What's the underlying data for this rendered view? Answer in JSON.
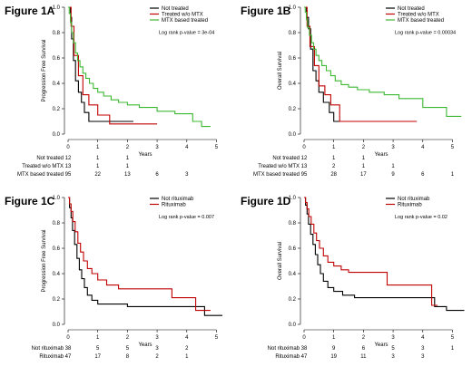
{
  "chart_data": [
    {
      "type": "line",
      "panel_title": "Figure 1A",
      "title": "",
      "xlabel": "Years",
      "ylabel": "Progression Free Survival",
      "xlim": [
        0,
        5.2
      ],
      "ylim": [
        0,
        1
      ],
      "xticks": [
        "0",
        "1",
        "2",
        "3",
        "4",
        "5"
      ],
      "yticks": [
        "0.0",
        "0.2",
        "0.4",
        "0.6",
        "0.8",
        "1.0"
      ],
      "legend_position": "top-right",
      "pvalue": "Log rank p-value = 3e-04",
      "series": [
        {
          "name": "Not treated",
          "color": "#000000",
          "x": [
            0,
            0.08,
            0.12,
            0.18,
            0.25,
            0.35,
            0.45,
            0.55,
            0.7,
            0.9,
            2.2
          ],
          "y": [
            1.0,
            0.92,
            0.75,
            0.58,
            0.42,
            0.33,
            0.25,
            0.17,
            0.1,
            0.1,
            0.1
          ]
        },
        {
          "name": "Treated w/o MTX",
          "color": "#c00000",
          "x": [
            0,
            0.1,
            0.2,
            0.35,
            0.5,
            0.7,
            1.0,
            1.4,
            2.0,
            3.0
          ],
          "y": [
            1.0,
            0.85,
            0.62,
            0.46,
            0.31,
            0.23,
            0.15,
            0.08,
            0.08,
            0.08
          ]
        },
        {
          "name": "MTX based treated",
          "color": "#3cb832",
          "x": [
            0,
            0.04,
            0.08,
            0.12,
            0.18,
            0.25,
            0.32,
            0.4,
            0.5,
            0.6,
            0.72,
            0.85,
            1.0,
            1.2,
            1.45,
            1.7,
            2.0,
            2.4,
            3.0,
            3.6,
            4.2,
            4.5,
            4.8
          ],
          "y": [
            1.0,
            0.95,
            0.88,
            0.8,
            0.72,
            0.64,
            0.58,
            0.53,
            0.48,
            0.44,
            0.4,
            0.36,
            0.33,
            0.3,
            0.27,
            0.25,
            0.23,
            0.21,
            0.18,
            0.16,
            0.1,
            0.06,
            0.06
          ]
        }
      ],
      "risk_table": {
        "rows": [
          {
            "label": "Not treated",
            "values": [
              "12",
              "1",
              "1",
              "",
              "",
              ""
            ]
          },
          {
            "label": "Treated w/o MTX",
            "values": [
              "13",
              "1",
              "1",
              "",
              "",
              ""
            ]
          },
          {
            "label": "MTX based treated",
            "values": [
              "95",
              "22",
              "13",
              "6",
              "3",
              ""
            ]
          }
        ]
      }
    },
    {
      "type": "line",
      "panel_title": "Figure 1B",
      "title": "",
      "xlabel": "Years",
      "ylabel": "Overall Survival",
      "xlim": [
        0,
        5.2
      ],
      "ylim": [
        0,
        1
      ],
      "xticks": [
        "0",
        "1",
        "2",
        "3",
        "4",
        "5"
      ],
      "yticks": [
        "0.0",
        "0.2",
        "0.4",
        "0.6",
        "0.8",
        "1.0"
      ],
      "legend_position": "top-right",
      "pvalue": "Log rank p-value = 0.00034",
      "series": [
        {
          "name": "Not treated",
          "color": "#000000",
          "x": [
            0,
            0.08,
            0.15,
            0.22,
            0.3,
            0.4,
            0.5,
            0.65,
            0.85,
            1.0,
            1.3,
            2.2
          ],
          "y": [
            1.0,
            0.92,
            0.83,
            0.67,
            0.5,
            0.42,
            0.33,
            0.25,
            0.17,
            0.1,
            0.1,
            0.1
          ]
        },
        {
          "name": "Treated w/o MTX",
          "color": "#c00000",
          "x": [
            0,
            0.1,
            0.2,
            0.35,
            0.5,
            0.7,
            0.9,
            1.2,
            2.0,
            3.8
          ],
          "y": [
            1.0,
            0.85,
            0.69,
            0.54,
            0.38,
            0.31,
            0.23,
            0.1,
            0.1,
            0.1
          ]
        },
        {
          "name": "MTX based treated",
          "color": "#3cb832",
          "x": [
            0,
            0.04,
            0.08,
            0.12,
            0.18,
            0.25,
            0.32,
            0.4,
            0.5,
            0.6,
            0.75,
            0.9,
            1.05,
            1.25,
            1.5,
            1.8,
            2.2,
            2.7,
            3.2,
            4.0,
            4.8,
            5.3
          ],
          "y": [
            1.0,
            0.96,
            0.9,
            0.84,
            0.78,
            0.72,
            0.67,
            0.62,
            0.58,
            0.54,
            0.5,
            0.46,
            0.42,
            0.39,
            0.37,
            0.35,
            0.33,
            0.31,
            0.28,
            0.21,
            0.14,
            0.14
          ]
        }
      ],
      "risk_table": {
        "rows": [
          {
            "label": "Not treated",
            "values": [
              "12",
              "1",
              "1",
              "",
              "",
              ""
            ]
          },
          {
            "label": "Treated w/o MTX",
            "values": [
              "13",
              "2",
              "1",
              "1",
              "",
              ""
            ]
          },
          {
            "label": "MTX based treated",
            "values": [
              "95",
              "28",
              "17",
              "9",
              "6",
              "1"
            ]
          }
        ]
      }
    },
    {
      "type": "line",
      "panel_title": "Figure 1C",
      "title": "",
      "xlabel": "Years",
      "ylabel": "Progression Free Survival",
      "xlim": [
        0,
        5.2
      ],
      "ylim": [
        0,
        1
      ],
      "xticks": [
        "0",
        "1",
        "2",
        "3",
        "4",
        "5"
      ],
      "yticks": [
        "0.0",
        "0.2",
        "0.4",
        "0.6",
        "0.8",
        "1.0"
      ],
      "legend_position": "top-right",
      "pvalue": "Log rank p-value = 0.007",
      "series": [
        {
          "name": "Not rituximab",
          "color": "#000000",
          "x": [
            0,
            0.05,
            0.1,
            0.15,
            0.22,
            0.3,
            0.38,
            0.46,
            0.55,
            0.65,
            0.8,
            1.0,
            1.4,
            2.0,
            3.0,
            4.2,
            4.6,
            5.2
          ],
          "y": [
            1.0,
            0.92,
            0.84,
            0.74,
            0.63,
            0.52,
            0.43,
            0.36,
            0.29,
            0.23,
            0.19,
            0.16,
            0.16,
            0.14,
            0.14,
            0.14,
            0.07,
            0.07
          ]
        },
        {
          "name": "Rituximab",
          "color": "#c00000",
          "x": [
            0,
            0.05,
            0.1,
            0.16,
            0.24,
            0.33,
            0.42,
            0.52,
            0.65,
            0.8,
            1.0,
            1.3,
            1.7,
            2.5,
            3.5,
            4.3,
            4.8
          ],
          "y": [
            1.0,
            0.95,
            0.89,
            0.81,
            0.73,
            0.64,
            0.57,
            0.5,
            0.44,
            0.4,
            0.35,
            0.31,
            0.28,
            0.28,
            0.21,
            0.11,
            0.11
          ]
        }
      ],
      "risk_table": {
        "rows": [
          {
            "label": "Not rituximab",
            "values": [
              "38",
              "5",
              "5",
              "3",
              "2",
              ""
            ]
          },
          {
            "label": "Rituximab",
            "values": [
              "47",
              "17",
              "8",
              "2",
              "1",
              ""
            ]
          }
        ]
      }
    },
    {
      "type": "line",
      "panel_title": "Figure 1D",
      "title": "",
      "xlabel": "Years",
      "ylabel": "Overall Survival",
      "xlim": [
        0,
        5.2
      ],
      "ylim": [
        0,
        1
      ],
      "xticks": [
        "0",
        "1",
        "2",
        "3",
        "4",
        "5"
      ],
      "yticks": [
        "0.0",
        "0.2",
        "0.4",
        "0.6",
        "0.8",
        "1.0"
      ],
      "legend_position": "top-right",
      "pvalue": "Log rank p-value = 0.02",
      "series": [
        {
          "name": "Not rituximab",
          "color": "#000000",
          "x": [
            0,
            0.05,
            0.1,
            0.15,
            0.22,
            0.3,
            0.38,
            0.46,
            0.55,
            0.65,
            0.8,
            1.0,
            1.3,
            1.7,
            2.2,
            3.0,
            4.4,
            4.8,
            5.4
          ],
          "y": [
            1.0,
            0.94,
            0.87,
            0.79,
            0.71,
            0.63,
            0.55,
            0.47,
            0.4,
            0.34,
            0.29,
            0.26,
            0.23,
            0.21,
            0.21,
            0.21,
            0.14,
            0.11,
            0.11
          ]
        },
        {
          "name": "Rituximab",
          "color": "#c00000",
          "x": [
            0,
            0.05,
            0.1,
            0.16,
            0.24,
            0.33,
            0.42,
            0.52,
            0.65,
            0.8,
            1.0,
            1.25,
            1.5,
            2.0,
            2.8,
            4.3,
            4.5
          ],
          "y": [
            1.0,
            0.96,
            0.91,
            0.85,
            0.79,
            0.72,
            0.66,
            0.6,
            0.54,
            0.49,
            0.46,
            0.43,
            0.41,
            0.41,
            0.31,
            0.15,
            0.15
          ]
        }
      ],
      "risk_table": {
        "rows": [
          {
            "label": "Not rituximab",
            "values": [
              "38",
              "9",
              "6",
              "5",
              "3",
              "1"
            ]
          },
          {
            "label": "Rituximab",
            "values": [
              "47",
              "19",
              "11",
              "3",
              "3",
              ""
            ]
          }
        ]
      }
    }
  ]
}
